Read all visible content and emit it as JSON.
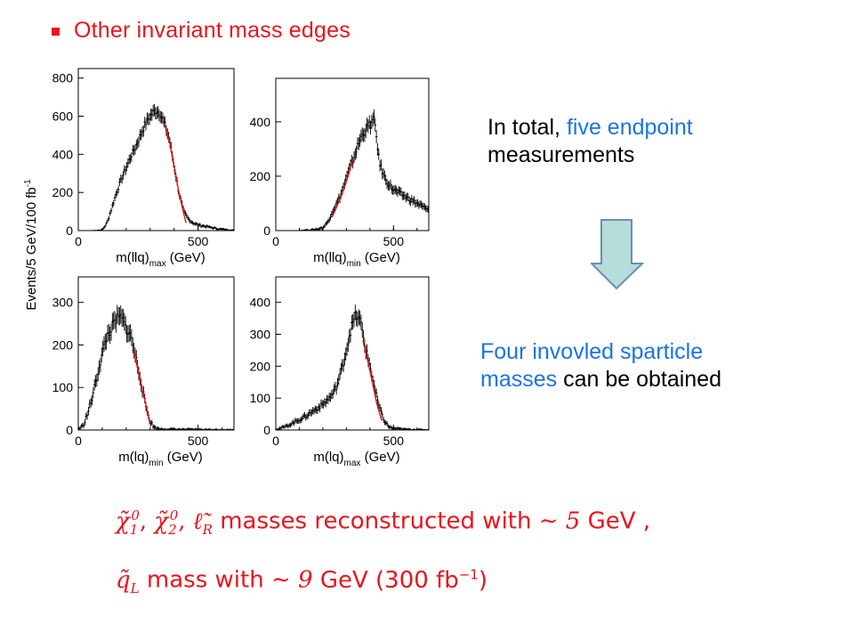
{
  "slide": {
    "bullet_title": "Other invariant mass edges"
  },
  "statement": {
    "part1": "In total,",
    "highlight": "five endpoint",
    "part2": "measurements"
  },
  "conclusion": {
    "highlight_line1": "Four invovled sparticle",
    "highlight_line2": "masses",
    "rest": "can be obtained"
  },
  "formula": {
    "line1": {
      "symbols": "χ̃₁⁰, χ̃₂⁰, ℓ̃_R",
      "chi": "χ̃",
      "sub1": "1",
      "sup1": "0",
      "sub2": "2",
      "sup2": "0",
      "sep": ",",
      "ell": "ℓ̃",
      "subR": "R",
      "text": "masses reconstructed with",
      "approx": "∼",
      "value": "5",
      "unit": "GeV ,"
    },
    "line2": {
      "q": "q̃",
      "subL": "L",
      "text": "mass with",
      "approx": "∼",
      "value": "9",
      "unit": "GeV (300 fb",
      "exp": "−1",
      "close": ")"
    }
  },
  "chart_data": {
    "type": "histogram-grid",
    "ylabel": "Events/5 GeV/100 fb",
    "ylabel_exp": "-1",
    "panels": [
      {
        "id": "tl",
        "xlabel": "m(llq)",
        "xlabel_sub": "max",
        "xlabel_unit": "(GeV)",
        "xlim": [
          0,
          650
        ],
        "ylim": [
          0,
          850
        ],
        "yticks": [
          0,
          200,
          400,
          600,
          800
        ],
        "xticks": [
          0,
          500
        ],
        "fit_range": [
          360,
          450
        ],
        "histogram": [
          [
            20,
            0
          ],
          [
            60,
            0
          ],
          [
            100,
            3
          ],
          [
            120,
            40
          ],
          [
            140,
            120
          ],
          [
            160,
            200
          ],
          [
            180,
            270
          ],
          [
            200,
            330
          ],
          [
            220,
            390
          ],
          [
            240,
            440
          ],
          [
            260,
            500
          ],
          [
            280,
            560
          ],
          [
            300,
            600
          ],
          [
            320,
            630
          ],
          [
            340,
            620
          ],
          [
            360,
            560
          ],
          [
            380,
            480
          ],
          [
            400,
            340
          ],
          [
            420,
            200
          ],
          [
            440,
            100
          ],
          [
            460,
            60
          ],
          [
            480,
            40
          ],
          [
            500,
            30
          ],
          [
            540,
            20
          ],
          [
            580,
            10
          ],
          [
            620,
            5
          ],
          [
            650,
            2
          ]
        ],
        "fit": [
          [
            360,
            560
          ],
          [
            380,
            470
          ],
          [
            400,
            340
          ],
          [
            420,
            200
          ],
          [
            440,
            90
          ],
          [
            450,
            40
          ]
        ]
      },
      {
        "id": "tr",
        "xlabel": "m(llq)",
        "xlabel_sub": "min",
        "xlabel_unit": "(GeV)",
        "xlim": [
          0,
          650
        ],
        "ylim": [
          0,
          560
        ],
        "yticks": [
          0,
          200,
          400
        ],
        "xticks": [
          0,
          500
        ],
        "fit_range": [
          240,
          330
        ],
        "histogram": [
          [
            20,
            0
          ],
          [
            100,
            0
          ],
          [
            160,
            3
          ],
          [
            200,
            10
          ],
          [
            220,
            30
          ],
          [
            240,
            70
          ],
          [
            260,
            100
          ],
          [
            280,
            140
          ],
          [
            300,
            190
          ],
          [
            320,
            240
          ],
          [
            340,
            290
          ],
          [
            360,
            340
          ],
          [
            380,
            370
          ],
          [
            400,
            390
          ],
          [
            420,
            405
          ],
          [
            440,
            250
          ],
          [
            460,
            200
          ],
          [
            480,
            170
          ],
          [
            500,
            150
          ],
          [
            520,
            140
          ],
          [
            560,
            120
          ],
          [
            600,
            100
          ],
          [
            640,
            80
          ],
          [
            650,
            70
          ]
        ],
        "fit": [
          [
            240,
            50
          ],
          [
            260,
            90
          ],
          [
            280,
            130
          ],
          [
            300,
            180
          ],
          [
            320,
            240
          ],
          [
            330,
            260
          ]
        ]
      },
      {
        "id": "bl",
        "xlabel": "m(lq)",
        "xlabel_sub": "min",
        "xlabel_unit": "(GeV)",
        "xlim": [
          0,
          650
        ],
        "ylim": [
          0,
          360
        ],
        "yticks": [
          0,
          100,
          200,
          300
        ],
        "xticks": [
          0,
          500
        ],
        "fit_range": [
          230,
          300
        ],
        "histogram": [
          [
            0,
            2
          ],
          [
            20,
            10
          ],
          [
            40,
            40
          ],
          [
            60,
            80
          ],
          [
            80,
            130
          ],
          [
            100,
            180
          ],
          [
            120,
            220
          ],
          [
            140,
            240
          ],
          [
            160,
            260
          ],
          [
            180,
            265
          ],
          [
            200,
            240
          ],
          [
            220,
            220
          ],
          [
            240,
            170
          ],
          [
            260,
            120
          ],
          [
            280,
            60
          ],
          [
            300,
            20
          ],
          [
            320,
            5
          ],
          [
            340,
            2
          ],
          [
            400,
            1
          ],
          [
            650,
            0
          ]
        ],
        "fit": [
          [
            230,
            190
          ],
          [
            250,
            140
          ],
          [
            270,
            90
          ],
          [
            290,
            40
          ],
          [
            300,
            15
          ]
        ]
      },
      {
        "id": "br",
        "xlabel": "m(lq)",
        "xlabel_sub": "max",
        "xlabel_unit": "(GeV)",
        "xlim": [
          0,
          650
        ],
        "ylim": [
          0,
          480
        ],
        "yticks": [
          0,
          100,
          200,
          300,
          400
        ],
        "xticks": [
          0,
          500
        ],
        "fit_range": [
          370,
          450
        ],
        "histogram": [
          [
            0,
            2
          ],
          [
            40,
            10
          ],
          [
            80,
            25
          ],
          [
            120,
            40
          ],
          [
            160,
            60
          ],
          [
            200,
            80
          ],
          [
            240,
            110
          ],
          [
            260,
            140
          ],
          [
            280,
            190
          ],
          [
            300,
            250
          ],
          [
            320,
            320
          ],
          [
            340,
            360
          ],
          [
            360,
            340
          ],
          [
            380,
            260
          ],
          [
            400,
            200
          ],
          [
            420,
            130
          ],
          [
            440,
            70
          ],
          [
            460,
            30
          ],
          [
            480,
            10
          ],
          [
            500,
            5
          ],
          [
            550,
            2
          ],
          [
            650,
            0
          ]
        ],
        "fit": [
          [
            370,
            280
          ],
          [
            390,
            220
          ],
          [
            410,
            150
          ],
          [
            430,
            80
          ],
          [
            450,
            30
          ]
        ]
      }
    ]
  }
}
